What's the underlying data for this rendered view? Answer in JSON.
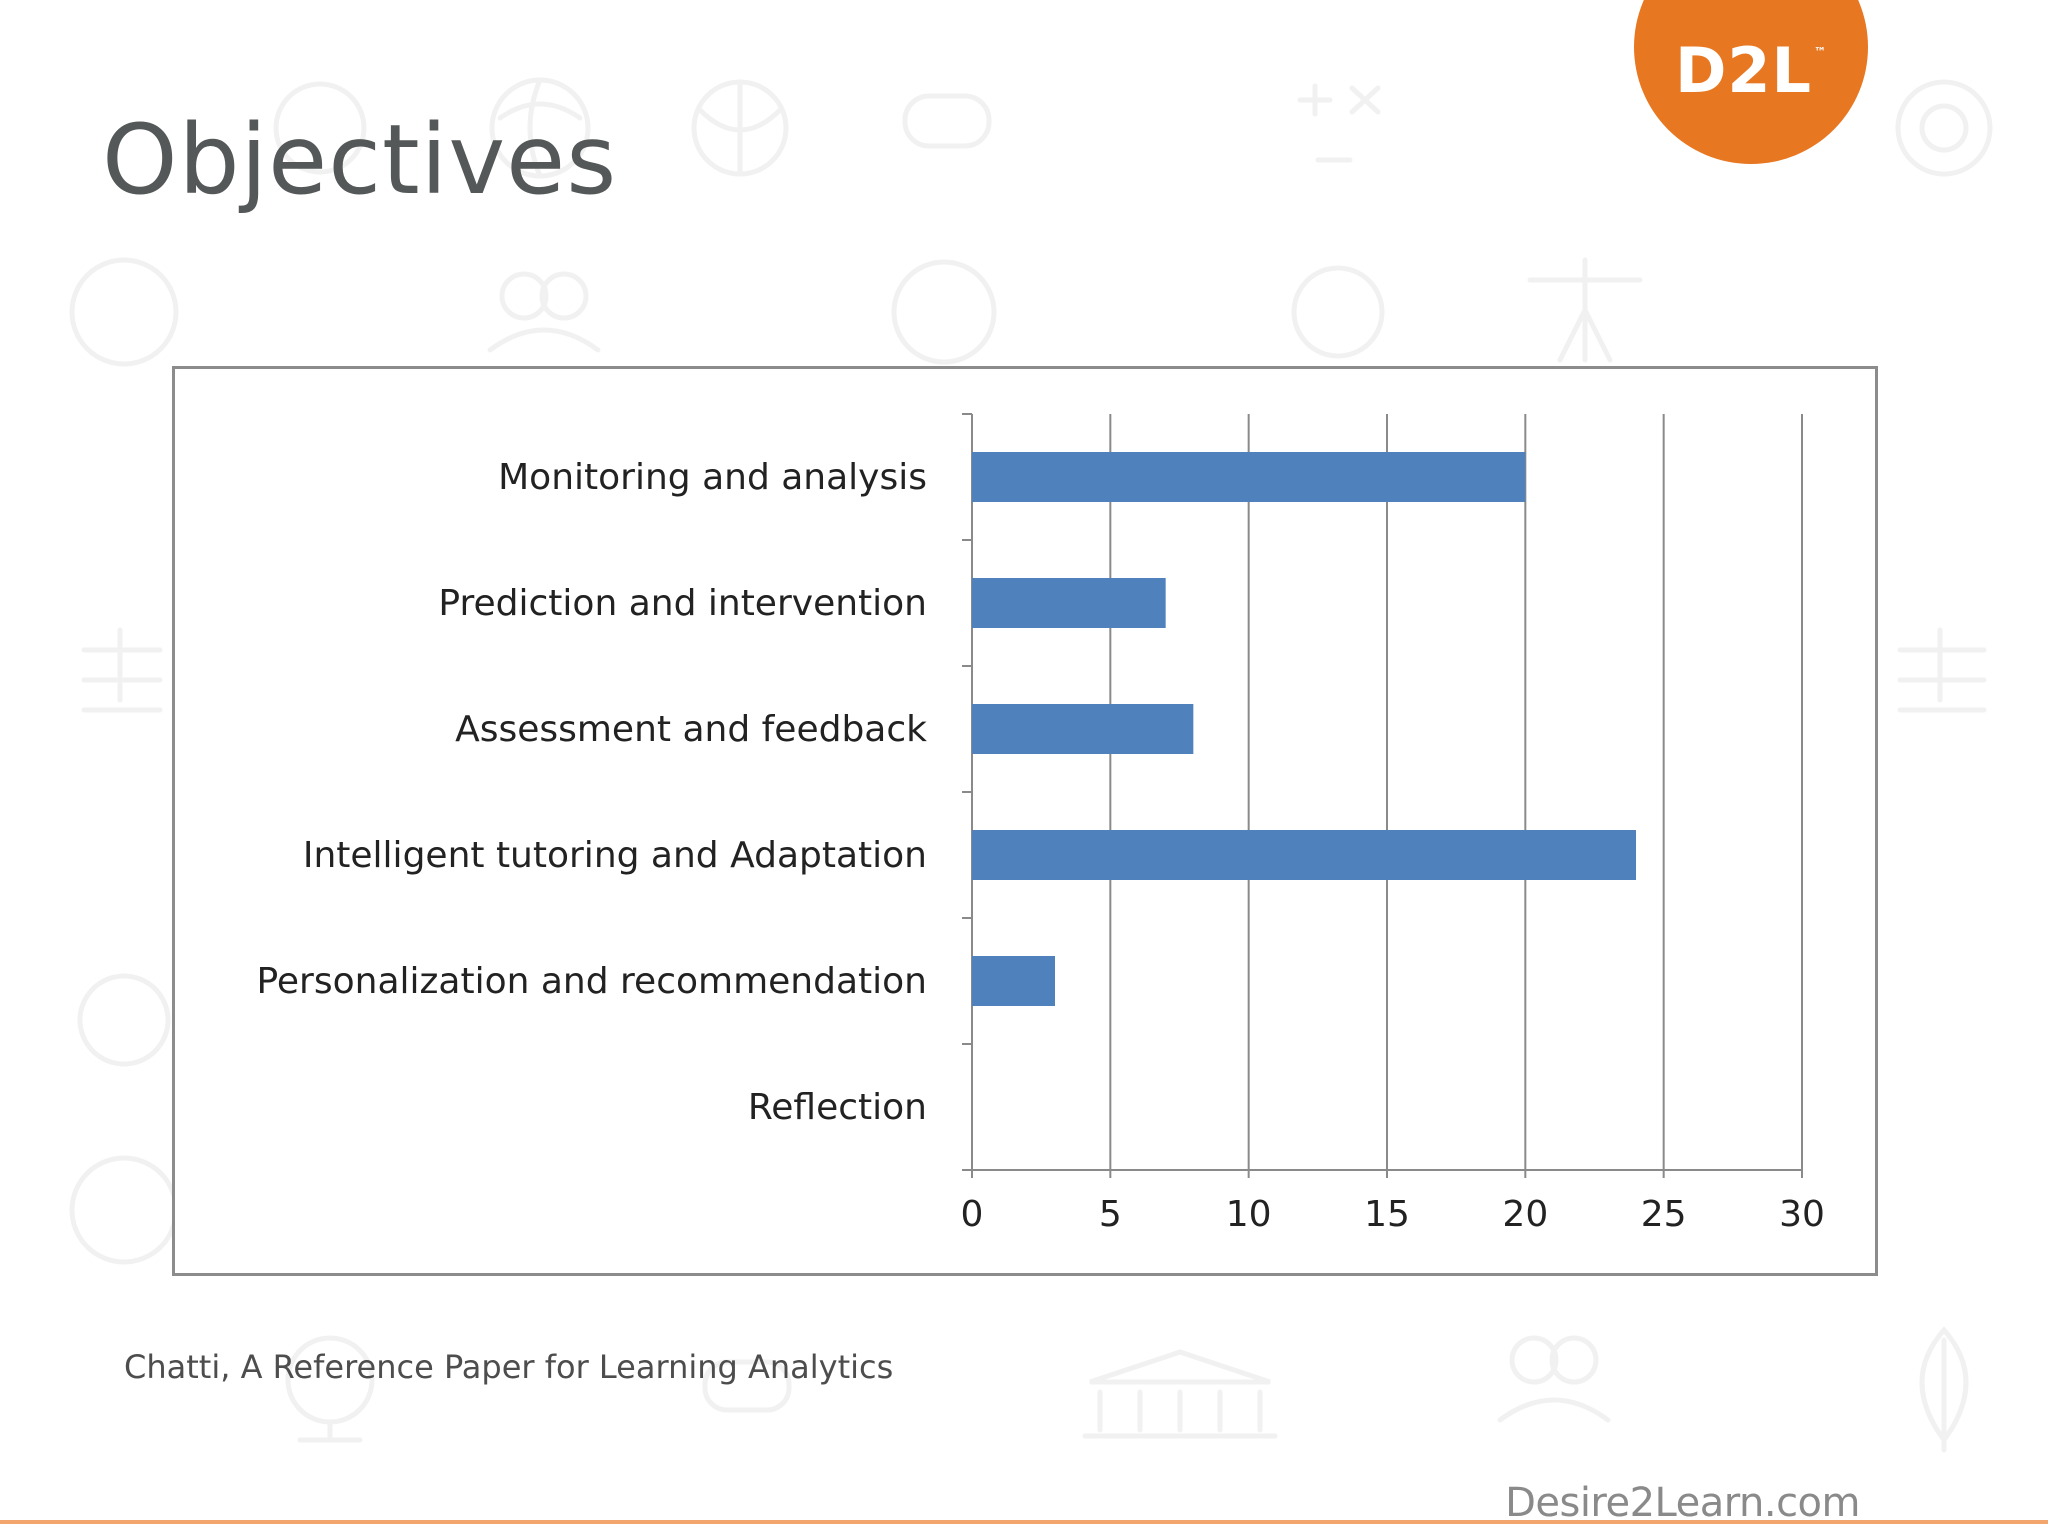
{
  "slide": {
    "title": "Objectives",
    "caption": "Chatti, A Reference Paper for Learning Analytics",
    "footer_url": "Desire2Learn.com"
  },
  "logo": {
    "text": "D2L",
    "trademark": "™",
    "color": "#e87722"
  },
  "chart_data": {
    "type": "bar",
    "orientation": "horizontal",
    "categories": [
      "Monitoring and analysis",
      "Prediction and intervention",
      "Assessment and feedback",
      "Intelligent tutoring and Adaptation",
      "Personalization and recommendation",
      "Reflection"
    ],
    "values": [
      20,
      7,
      8,
      24,
      3,
      0
    ],
    "title": "",
    "xlabel": "",
    "ylabel": "",
    "xlim": [
      0,
      30
    ],
    "x_ticks": [
      0,
      5,
      10,
      15,
      20,
      25,
      30
    ],
    "grid": "vertical",
    "legend": "none",
    "bar_color": "#4f81bd"
  }
}
